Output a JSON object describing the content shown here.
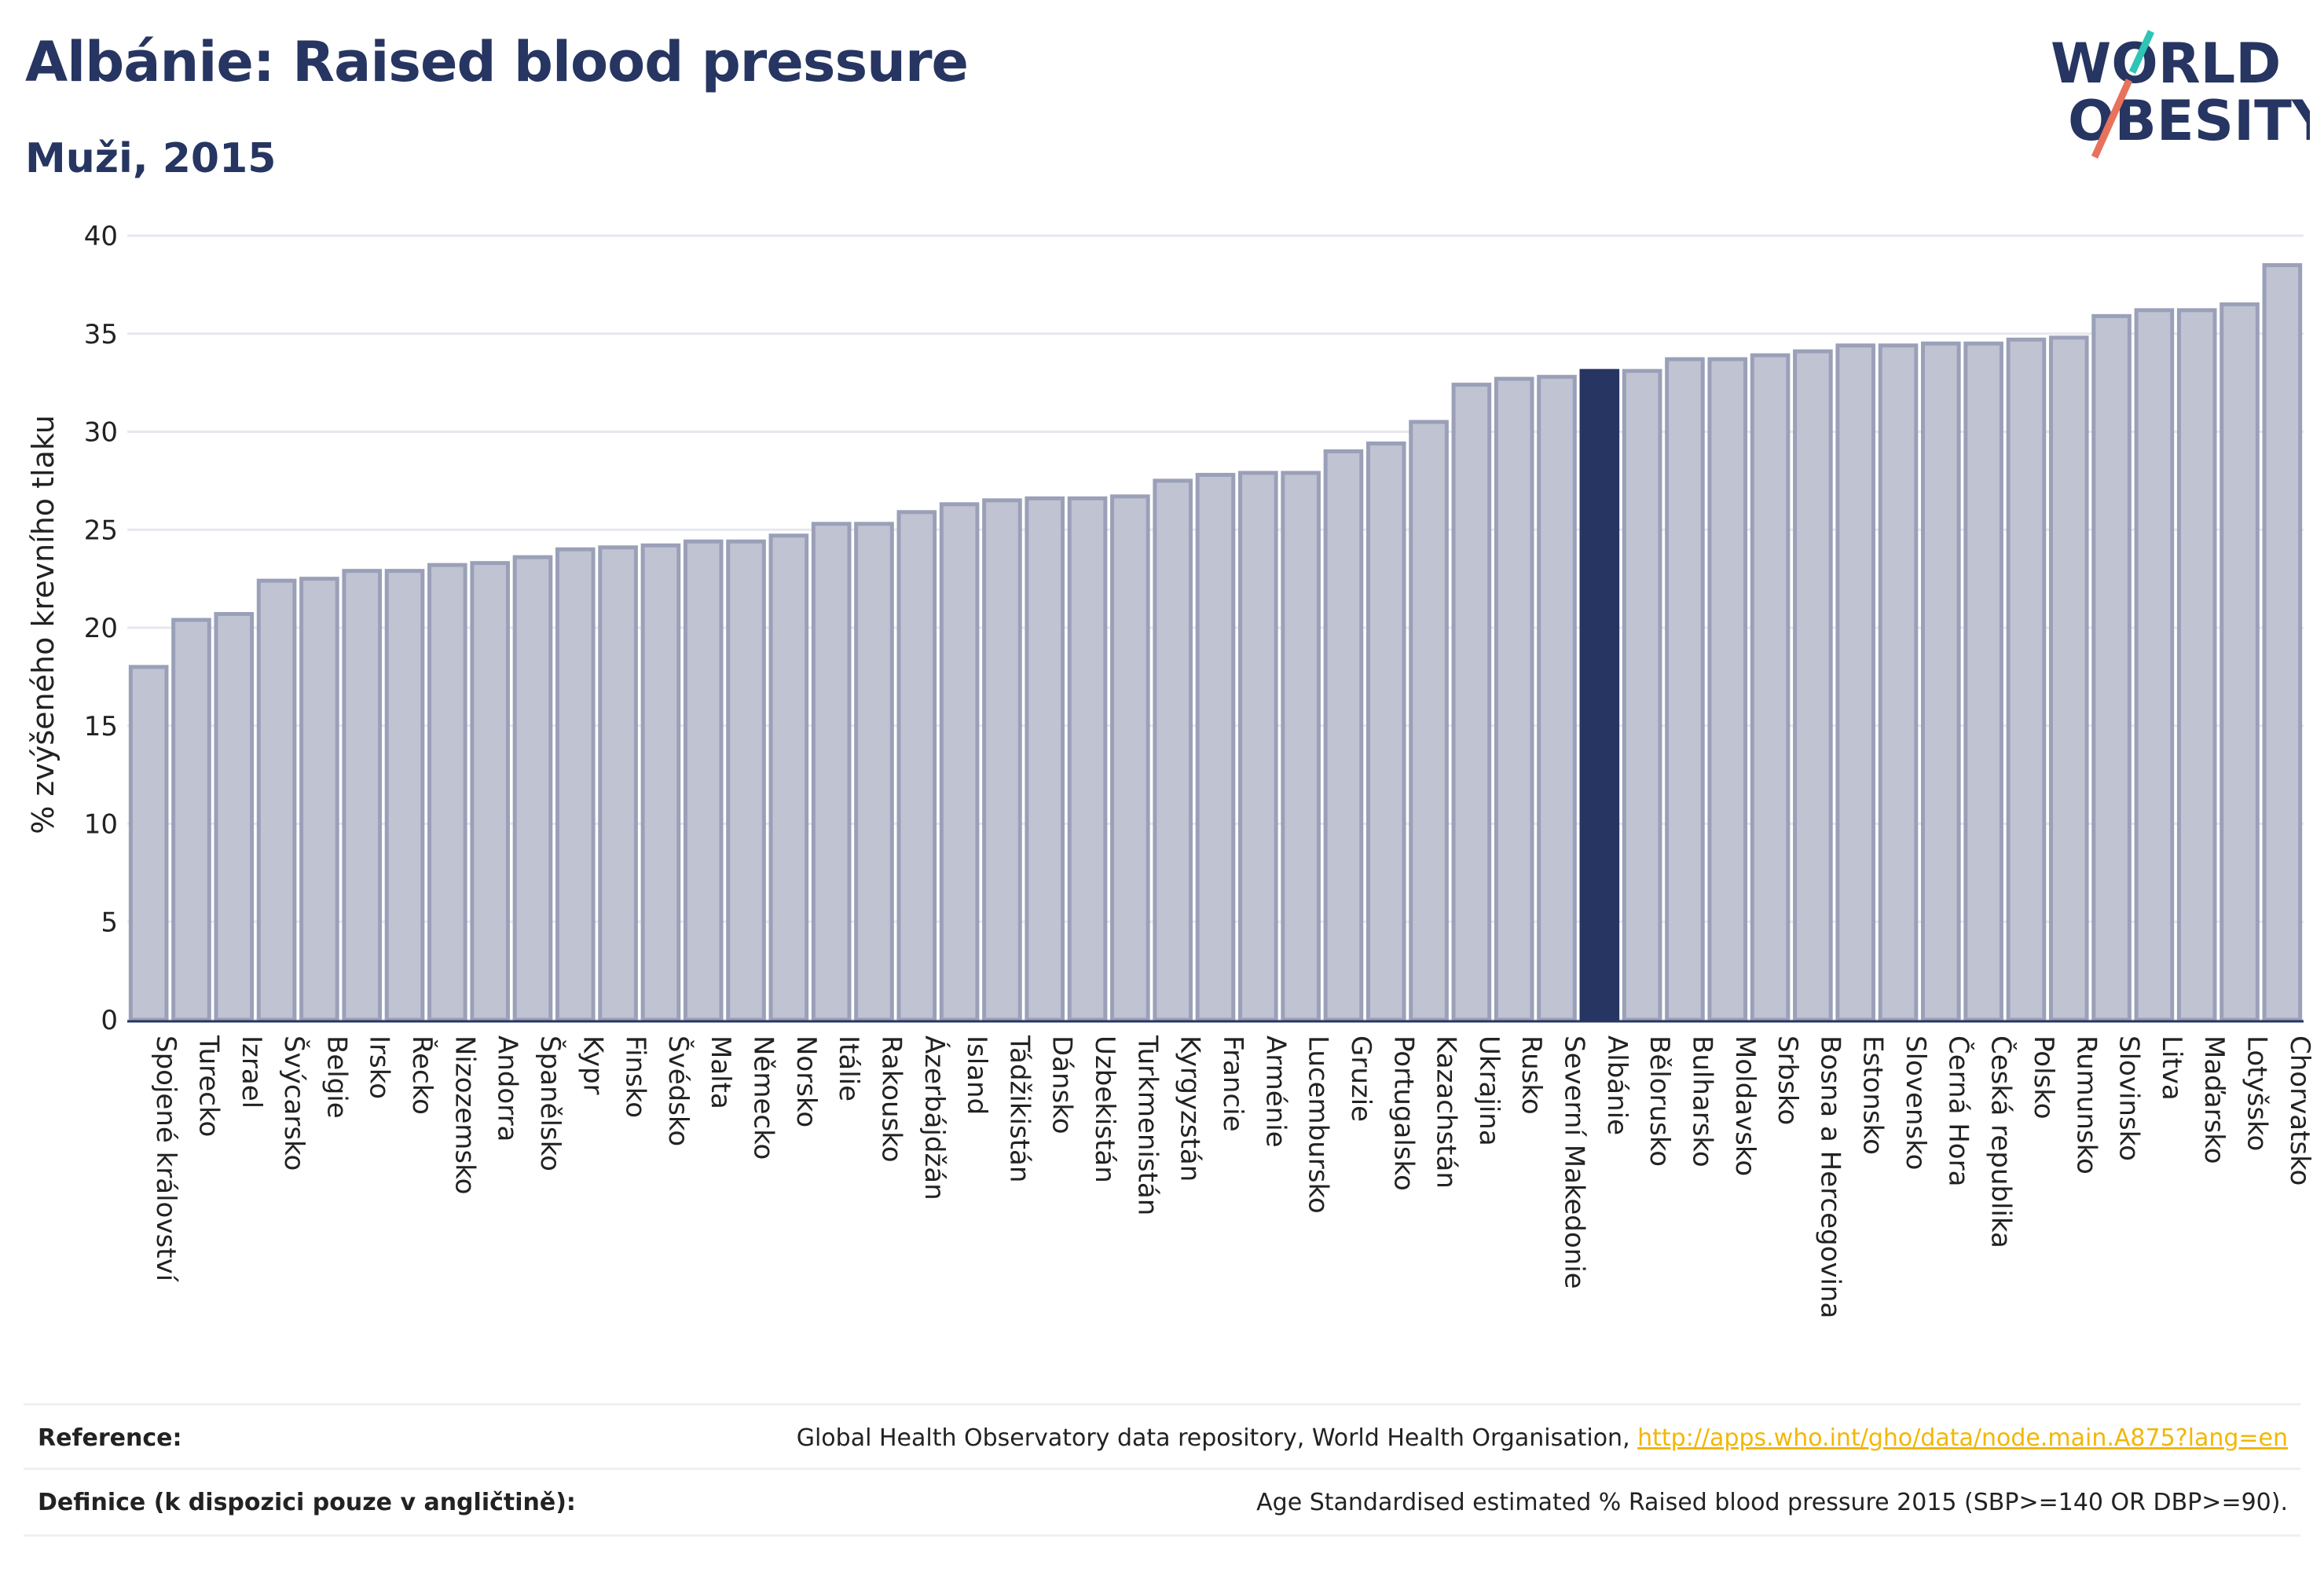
{
  "header": {
    "title": "Albánie: Raised blood pressure",
    "subtitle": "Muži, 2015"
  },
  "logo": {
    "line1": "WORLD",
    "line2": "OBESITY",
    "colors": {
      "primary": "#263561",
      "slash_top": "#2ec4b6",
      "slash_bottom": "#e8725c"
    }
  },
  "colors": {
    "bar": "#bfc3d2",
    "bar_border": "#9aa0b8",
    "highlight": "#263561",
    "grid": "#e6e8ef"
  },
  "chart_data": {
    "type": "bar",
    "ylabel": "% zvýšeného krevního tlaku",
    "ylim": [
      0,
      40
    ],
    "yticks": [
      0,
      5,
      10,
      15,
      20,
      25,
      30,
      35,
      40
    ],
    "grid": true,
    "highlight": "Albánie",
    "categories": [
      "Spojené království",
      "Turecko",
      "Izrael",
      "Švýcarsko",
      "Belgie",
      "Irsko",
      "Řecko",
      "Nizozemsko",
      "Andorra",
      "Španělsko",
      "Kypr",
      "Finsko",
      "Švédsko",
      "Malta",
      "Německo",
      "Norsko",
      "Itálie",
      "Rakousko",
      "Ázerbájdžán",
      "Island",
      "Tádžikistán",
      "Dánsko",
      "Uzbekistán",
      "Turkmenistán",
      "Kyrgyzstán",
      "Francie",
      "Arménie",
      "Lucembursko",
      "Gruzie",
      "Portugalsko",
      "Kazachstán",
      "Ukrajina",
      "Rusko",
      "Severní Makedonie",
      "Albánie",
      "Bělorusko",
      "Bulharsko",
      "Moldavsko",
      "Srbsko",
      "Bosna a Hercegovina",
      "Estonsko",
      "Slovensko",
      "Černá Hora",
      "Česká republika",
      "Polsko",
      "Rumunsko",
      "Slovinsko",
      "Litva",
      "Maďarsko",
      "Lotyšsko",
      "Chorvatsko"
    ],
    "values": [
      18.0,
      20.4,
      20.7,
      22.4,
      22.5,
      22.9,
      22.9,
      23.2,
      23.3,
      23.6,
      24.0,
      24.1,
      24.2,
      24.4,
      24.4,
      24.7,
      25.3,
      25.3,
      25.9,
      26.3,
      26.5,
      26.6,
      26.6,
      26.7,
      27.5,
      27.8,
      27.9,
      27.9,
      29.0,
      29.4,
      30.5,
      32.4,
      32.7,
      32.8,
      33.1,
      33.1,
      33.7,
      33.7,
      33.9,
      34.1,
      34.4,
      34.4,
      34.5,
      34.5,
      34.7,
      34.8,
      35.9,
      36.2,
      36.2,
      36.5,
      38.5
    ]
  },
  "footer": {
    "reference_label": "Reference:",
    "reference_text": "Global Health Observatory data repository, World Health Organisation, ",
    "reference_link": "http://apps.who.int/gho/data/node.main.A875?lang=en",
    "definition_label": "Definice (k dispozici pouze v angličtině):",
    "definition_text": "Age Standardised estimated % Raised blood pressure 2015 (SBP>=140 OR DBP>=90)."
  }
}
